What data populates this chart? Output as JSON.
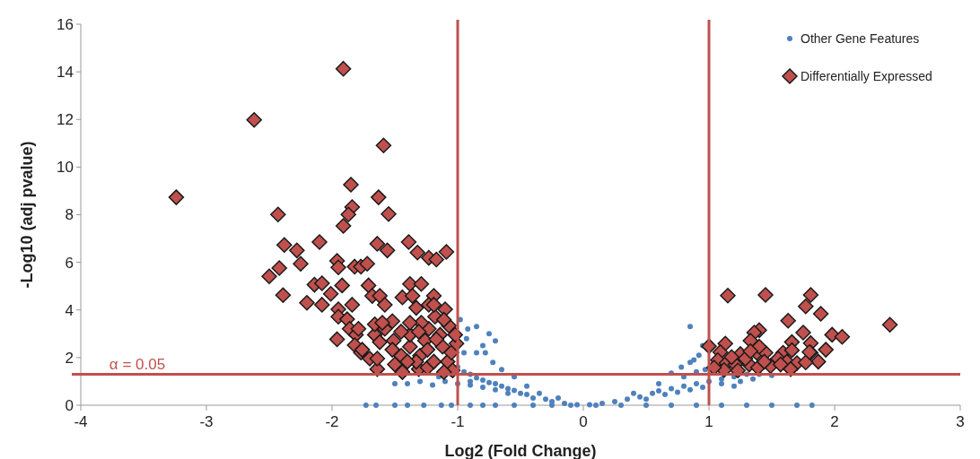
{
  "chart_data": {
    "type": "scatter",
    "xlabel": "Log2 (Fold Change)",
    "ylabel": "-Log10 (adj pvalue)",
    "xlim": [
      -4,
      3
    ],
    "ylim": [
      0,
      16
    ],
    "xticks": [
      -4,
      -3,
      -2,
      -1,
      0,
      1,
      2,
      3
    ],
    "yticks": [
      0,
      2,
      4,
      6,
      8,
      10,
      12,
      14,
      16
    ],
    "grid": false,
    "legend": "top right",
    "ref_lines": [
      {
        "axis": "x",
        "value": -1,
        "color": "#c0504d"
      },
      {
        "axis": "x",
        "value": 1,
        "color": "#c0504d"
      },
      {
        "axis": "y",
        "value": 1.301,
        "color": "#c0504d"
      }
    ],
    "annotations": [
      {
        "text": "α = 0.05",
        "x": -3.55,
        "y": 1.301
      }
    ],
    "series": [
      {
        "name": "Other Gene Features",
        "color": "#4f81bd",
        "marker": "circle",
        "x": [
          -1.73,
          -1.65,
          -1.5,
          -1.4,
          -1.27,
          -1.13,
          -1.05,
          -0.9,
          -0.8,
          -0.7,
          -0.55,
          -0.4,
          -0.25,
          -0.1,
          0.1,
          0.3,
          0.5,
          0.7,
          0.9,
          1.1,
          1.3,
          1.5,
          1.7,
          1.82,
          -0.05,
          -0.15,
          -0.25,
          -0.3,
          -0.4,
          -0.45,
          -0.5,
          -0.55,
          -0.6,
          -0.65,
          -0.7,
          -0.75,
          -0.8,
          -0.85,
          -0.9,
          -0.95,
          -1.0,
          -0.6,
          -0.7,
          -0.8,
          -0.9,
          -1.0,
          -1.1,
          -1.15,
          -1.2,
          -0.95,
          -0.93,
          -0.85,
          -0.8,
          -0.78,
          -0.72,
          -0.92,
          -0.98,
          -0.85,
          -0.75,
          -0.7,
          -0.55,
          -0.45,
          -0.35,
          -0.2,
          -1.05,
          -0.9,
          -1.3,
          -1.4,
          -1.5,
          -0.65,
          0.05,
          0.15,
          0.25,
          0.35,
          0.45,
          0.55,
          0.6,
          0.7,
          0.8,
          0.9,
          1.0,
          0.5,
          0.65,
          0.75,
          0.85,
          0.95,
          0.8,
          0.9,
          0.97,
          0.85,
          0.92,
          0.95,
          0.88,
          0.78,
          0.7,
          0.6,
          0.4,
          1.1,
          1.2,
          1.3,
          1.4,
          1.5,
          1.1,
          1.2,
          1.35,
          1.25,
          0.85
        ],
        "values": [
          0,
          0,
          0,
          0,
          0,
          0,
          0,
          0,
          0,
          0,
          0,
          0,
          0,
          0,
          0,
          0,
          0,
          0,
          0,
          0,
          0,
          0,
          0,
          0,
          0.02,
          0.08,
          0.15,
          0.25,
          0.3,
          0.45,
          0.5,
          0.62,
          0.7,
          0.8,
          0.9,
          0.95,
          1.05,
          1.15,
          1.3,
          1.4,
          1.6,
          0.5,
          0.65,
          0.75,
          0.85,
          0.9,
          1.0,
          1.2,
          0.85,
          2.2,
          2.8,
          2.2,
          2.5,
          2.2,
          1.8,
          3.2,
          3.6,
          3.3,
          3.0,
          2.7,
          1.2,
          0.8,
          0.5,
          0.3,
          1.3,
          1.0,
          1.0,
          0.9,
          0.9,
          1.5,
          0.02,
          0.08,
          0.15,
          0.25,
          0.35,
          0.5,
          0.6,
          0.7,
          0.8,
          0.9,
          1.0,
          0.25,
          0.45,
          0.55,
          0.65,
          0.75,
          1.2,
          1.4,
          1.5,
          1.8,
          2.1,
          2.5,
          1.9,
          1.6,
          1.35,
          0.9,
          0.5,
          1.1,
          1.2,
          1.3,
          1.3,
          1.25,
          0.9,
          0.8,
          1.1,
          1.0,
          3.3
        ]
      },
      {
        "name": "Differentially Expressed",
        "color": "#c0504d",
        "marker": "diamond",
        "x": [
          -1.91,
          -2.62,
          -1.59,
          -3.24,
          -1.85,
          -1.63,
          -1.84,
          -1.87,
          -1.55,
          -2.43,
          -1.91,
          -2.38,
          -2.28,
          -2.1,
          -1.64,
          -1.56,
          -1.39,
          -1.32,
          -1.23,
          -1.17,
          -1.09,
          -2.42,
          -2.5,
          -2.25,
          -1.96,
          -1.95,
          -1.82,
          -1.77,
          -1.72,
          -2.39,
          -2.2,
          -2.14,
          -2.08,
          -2.01,
          -2.08,
          -1.92,
          -1.95,
          -1.84,
          -1.71,
          -1.68,
          -1.62,
          -1.58,
          -1.96,
          -1.95,
          -1.88,
          -1.86,
          -1.81,
          -1.82,
          -1.77,
          -1.79,
          -1.7,
          -1.64,
          -1.64,
          -1.66,
          -1.66,
          -1.62,
          -1.58,
          -1.52,
          -1.44,
          -1.38,
          -1.29,
          -1.36,
          -1.19,
          -1.33,
          -1.23,
          -1.1,
          -1.51,
          -1.5,
          -1.44,
          -1.45,
          -1.38,
          -1.38,
          -1.31,
          -1.3,
          -1.26,
          -1.23,
          -1.18,
          -1.14,
          -1.12,
          -1.08,
          -1.04,
          -1.05,
          -1.07,
          -1.24,
          -1.11,
          -1.33,
          -1.4,
          -1.52,
          -1.6,
          -1.45,
          -1.24,
          -1.17,
          -1.11,
          -1.19,
          -1.29,
          -1.38,
          -1.01,
          -1.19,
          -1.02,
          -1.76,
          -1.31,
          1.15,
          1.45,
          1.81,
          1.77,
          1.89,
          1.63,
          2.44,
          1.4,
          1.36,
          1.75,
          1.98,
          2.06,
          1.0,
          1.13,
          1.33,
          1.66,
          1.81,
          1.93,
          1.09,
          1.25,
          1.38,
          1.45,
          1.59,
          1.81,
          1.87,
          1.07,
          1.14,
          1.21,
          1.32,
          1.49,
          1.55,
          1.62,
          1.7,
          1.77,
          1.65,
          1.39,
          1.23,
          1.12,
          1.04,
          1.29,
          1.18,
          1.66,
          1.8,
          1.4,
          1.33,
          1.44,
          1.57
        ],
        "values": [
          14.13,
          11.98,
          10.91,
          8.73,
          9.26,
          8.73,
          8.32,
          8.01,
          8.03,
          8.01,
          7.53,
          6.73,
          6.5,
          6.85,
          6.78,
          6.5,
          6.85,
          6.41,
          6.19,
          6.12,
          6.44,
          5.76,
          5.41,
          5.94,
          6.06,
          5.79,
          5.82,
          5.82,
          5.94,
          4.62,
          4.3,
          5.06,
          5.12,
          4.68,
          4.22,
          5.03,
          4.03,
          4.22,
          5.03,
          4.59,
          4.59,
          4.22,
          2.77,
          3.72,
          3.61,
          3.21,
          2.96,
          2.52,
          2.21,
          3.21,
          1.96,
          1.52,
          1.96,
          2.96,
          3.4,
          2.65,
          3.21,
          3.53,
          4.53,
          5.09,
          5.09,
          4.59,
          4.59,
          4.09,
          4.22,
          4.03,
          2.71,
          1.71,
          1.39,
          2.08,
          2.46,
          2.96,
          1.52,
          2.08,
          2.71,
          3.21,
          3.72,
          2.96,
          2.46,
          1.83,
          1.46,
          2.21,
          3.34,
          1.58,
          1.39,
          1.83,
          1.83,
          2.33,
          3.46,
          3.09,
          2.33,
          2.77,
          3.59,
          4.22,
          3.46,
          3.46,
          2.59,
          1.83,
          2.96,
          2.33,
          3.09,
          4.6,
          4.63,
          4.63,
          4.15,
          3.84,
          3.55,
          3.38,
          3.15,
          3.05,
          3.05,
          2.96,
          2.87,
          2.48,
          2.59,
          2.71,
          2.65,
          2.61,
          2.33,
          2.23,
          2.15,
          2.2,
          2.2,
          2.2,
          2.2,
          1.83,
          1.89,
          1.77,
          1.71,
          1.71,
          1.65,
          1.96,
          1.83,
          1.77,
          1.8,
          1.52,
          1.58,
          1.46,
          1.48,
          1.58,
          1.96,
          2.02,
          2.31,
          2.23,
          2.46,
          2.27,
          1.83,
          1.71
        ]
      }
    ]
  }
}
